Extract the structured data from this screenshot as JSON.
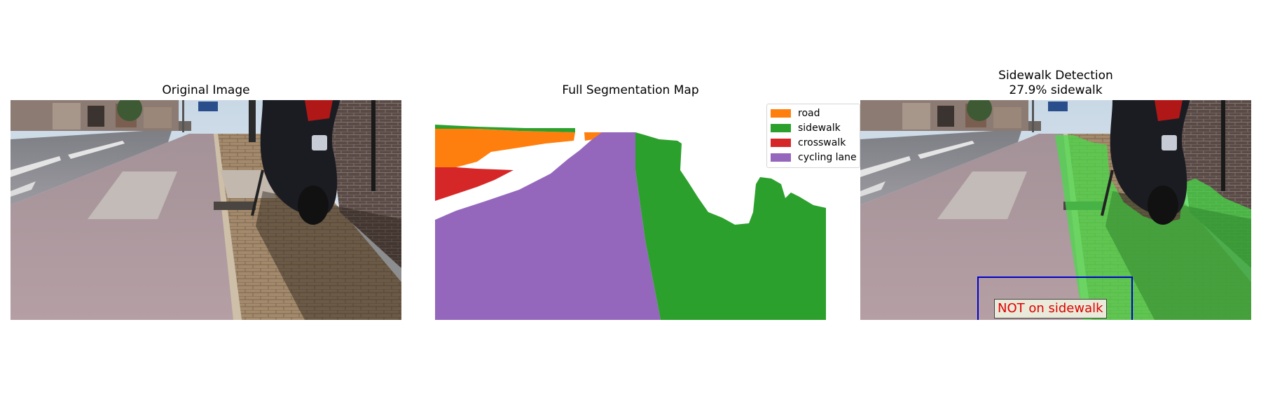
{
  "panels": {
    "original": {
      "title": "Original Image"
    },
    "segmentation": {
      "title": "Full Segmentation Map"
    },
    "detection": {
      "title_line1": "Sidewalk Detection",
      "title_line2": "27.9% sidewalk"
    }
  },
  "legend": {
    "items": [
      {
        "label": "road",
        "color": "#ff7f0e"
      },
      {
        "label": "sidewalk",
        "color": "#2ca02c"
      },
      {
        "label": "crosswalk",
        "color": "#d62728"
      },
      {
        "label": "cycling lane",
        "color": "#9467bd"
      }
    ]
  },
  "detection": {
    "sidewalk_fraction": 0.279,
    "status_label": "NOT on sidewalk",
    "status_color": "#e00000",
    "box_color": "#0000cc"
  }
}
